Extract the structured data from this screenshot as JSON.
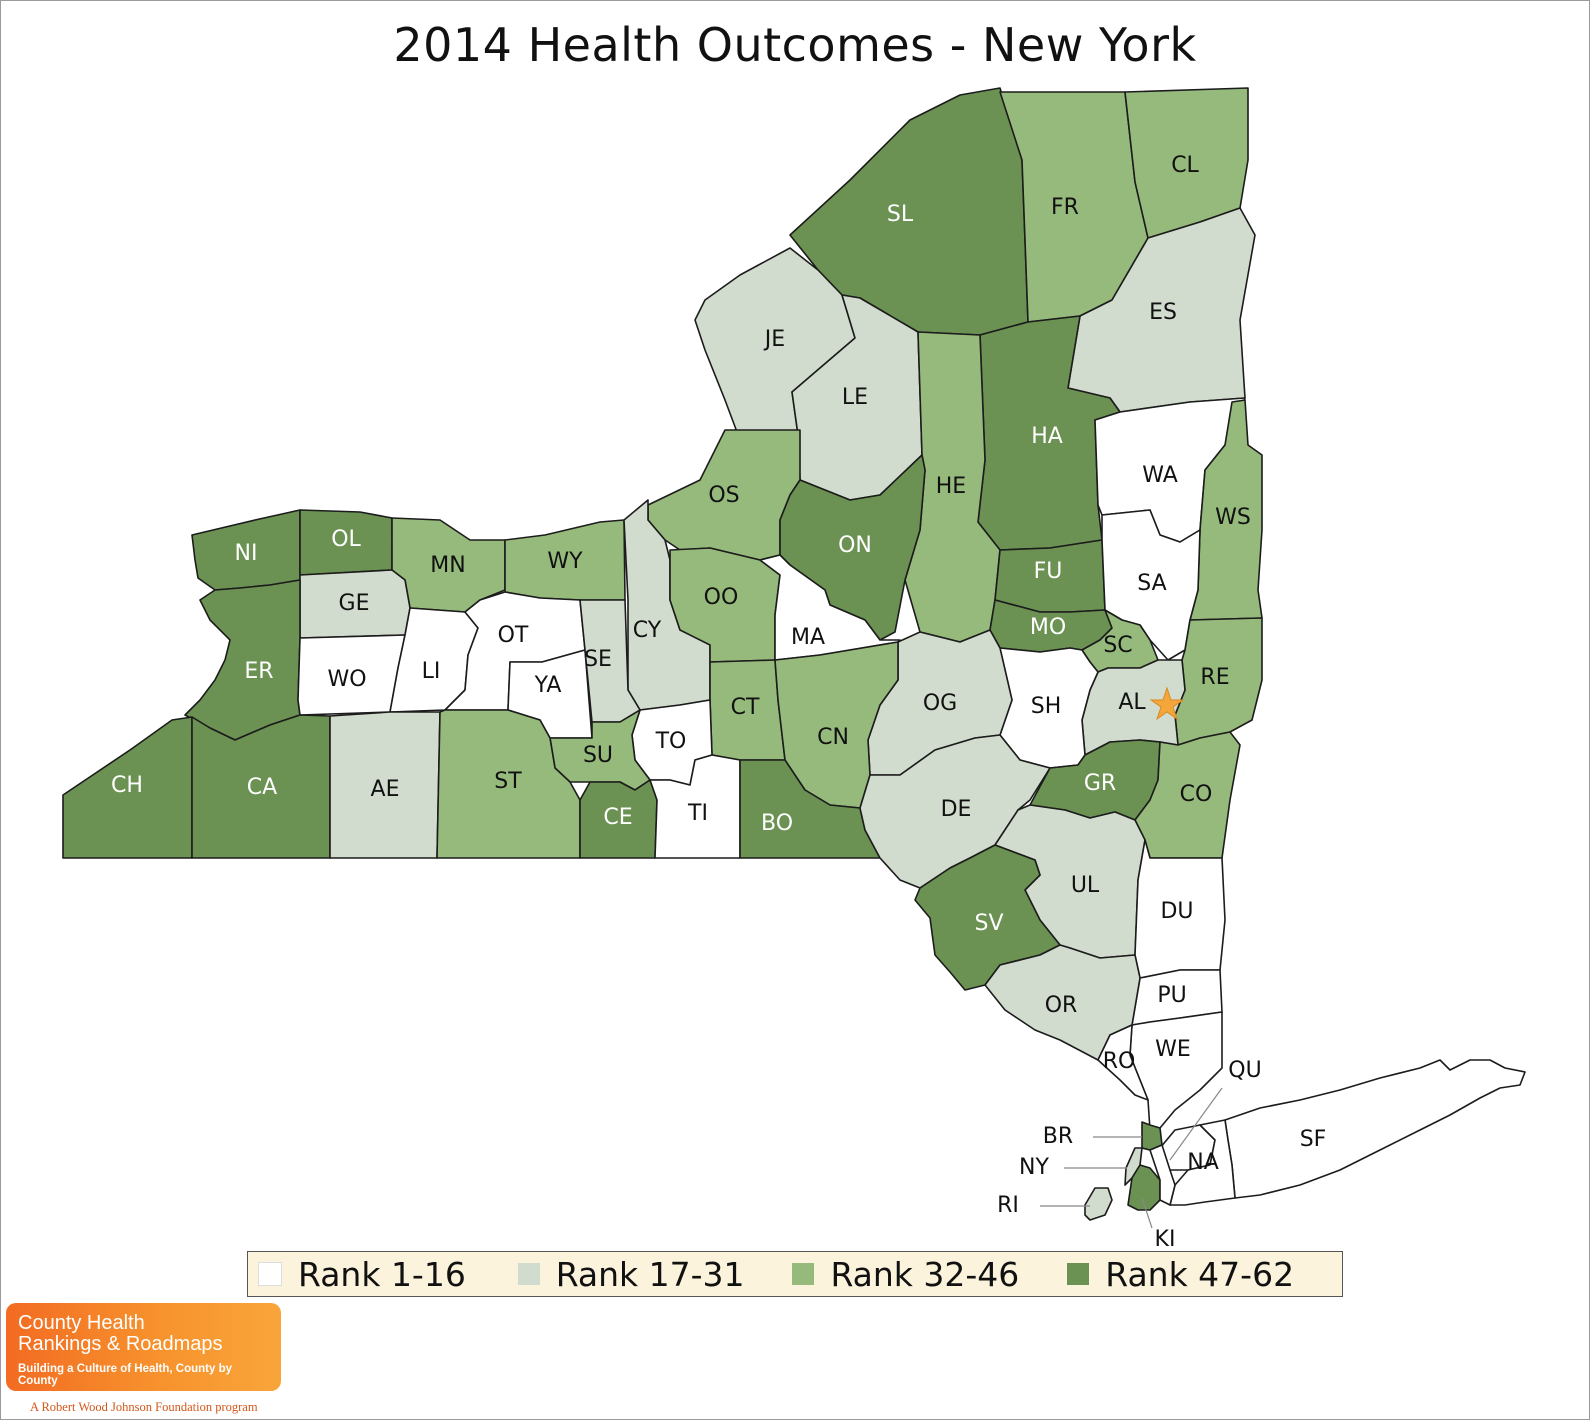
{
  "title": "2014 Health Outcomes - New York",
  "colors": {
    "rank_1_16": "#ffffff",
    "rank_17_31": "#d2dcce",
    "rank_32_46": "#96ba7c",
    "rank_47_62": "#6b9253",
    "capital_star": "#f5a63a",
    "legend_bg": "#fbf3dc"
  },
  "legend": [
    {
      "label": "Rank 1-16",
      "class": "rank_1_16"
    },
    {
      "label": "Rank 17-31",
      "class": "rank_17_31"
    },
    {
      "label": "Rank 32-46",
      "class": "rank_32_46"
    },
    {
      "label": "Rank 47-62",
      "class": "rank_47_62"
    }
  ],
  "counties": [
    {
      "code": "SL",
      "rank": "rank_47_62"
    },
    {
      "code": "FR",
      "rank": "rank_32_46"
    },
    {
      "code": "CL",
      "rank": "rank_32_46"
    },
    {
      "code": "ES",
      "rank": "rank_17_31"
    },
    {
      "code": "JE",
      "rank": "rank_17_31"
    },
    {
      "code": "LE",
      "rank": "rank_17_31"
    },
    {
      "code": "HA",
      "rank": "rank_47_62"
    },
    {
      "code": "HE",
      "rank": "rank_32_46"
    },
    {
      "code": "WA",
      "rank": "rank_1_16"
    },
    {
      "code": "WS",
      "rank": "rank_32_46"
    },
    {
      "code": "OS",
      "rank": "rank_32_46"
    },
    {
      "code": "ON",
      "rank": "rank_47_62"
    },
    {
      "code": "NI",
      "rank": "rank_47_62"
    },
    {
      "code": "OL",
      "rank": "rank_47_62"
    },
    {
      "code": "MN",
      "rank": "rank_32_46"
    },
    {
      "code": "WY",
      "rank": "rank_32_46"
    },
    {
      "code": "CY",
      "rank": "rank_17_31"
    },
    {
      "code": "OO",
      "rank": "rank_32_46"
    },
    {
      "code": "FU",
      "rank": "rank_47_62"
    },
    {
      "code": "SA",
      "rank": "rank_1_16"
    },
    {
      "code": "GE",
      "rank": "rank_17_31"
    },
    {
      "code": "ER",
      "rank": "rank_47_62"
    },
    {
      "code": "WO",
      "rank": "rank_1_16"
    },
    {
      "code": "LI",
      "rank": "rank_1_16"
    },
    {
      "code": "OT",
      "rank": "rank_1_16"
    },
    {
      "code": "YA",
      "rank": "rank_1_16"
    },
    {
      "code": "SE",
      "rank": "rank_17_31"
    },
    {
      "code": "MA",
      "rank": "rank_1_16"
    },
    {
      "code": "MO",
      "rank": "rank_47_62"
    },
    {
      "code": "SC",
      "rank": "rank_32_46"
    },
    {
      "code": "RE",
      "rank": "rank_32_46"
    },
    {
      "code": "AL",
      "rank": "rank_17_31"
    },
    {
      "code": "SH",
      "rank": "rank_1_16"
    },
    {
      "code": "OG",
      "rank": "rank_17_31"
    },
    {
      "code": "CT",
      "rank": "rank_32_46"
    },
    {
      "code": "CN",
      "rank": "rank_32_46"
    },
    {
      "code": "TO",
      "rank": "rank_1_16"
    },
    {
      "code": "SU",
      "rank": "rank_32_46"
    },
    {
      "code": "CH",
      "rank": "rank_47_62"
    },
    {
      "code": "CA",
      "rank": "rank_47_62"
    },
    {
      "code": "AE",
      "rank": "rank_17_31"
    },
    {
      "code": "ST",
      "rank": "rank_32_46"
    },
    {
      "code": "CE",
      "rank": "rank_47_62"
    },
    {
      "code": "TI",
      "rank": "rank_1_16"
    },
    {
      "code": "BO",
      "rank": "rank_47_62"
    },
    {
      "code": "DE",
      "rank": "rank_17_31"
    },
    {
      "code": "GR",
      "rank": "rank_47_62"
    },
    {
      "code": "CO",
      "rank": "rank_32_46"
    },
    {
      "code": "UL",
      "rank": "rank_17_31"
    },
    {
      "code": "DU",
      "rank": "rank_1_16"
    },
    {
      "code": "SV",
      "rank": "rank_47_62"
    },
    {
      "code": "PU",
      "rank": "rank_1_16"
    },
    {
      "code": "OR",
      "rank": "rank_17_31"
    },
    {
      "code": "WE",
      "rank": "rank_1_16"
    },
    {
      "code": "RO",
      "rank": "rank_1_16"
    },
    {
      "code": "QU",
      "rank": "rank_1_16"
    },
    {
      "code": "SF",
      "rank": "rank_1_16"
    },
    {
      "code": "NA",
      "rank": "rank_1_16"
    },
    {
      "code": "BR",
      "rank": "rank_47_62"
    },
    {
      "code": "NY",
      "rank": "rank_17_31"
    },
    {
      "code": "RI",
      "rank": "rank_17_31"
    },
    {
      "code": "KI",
      "rank": "rank_47_62"
    }
  ],
  "logo": {
    "line1": "County Health",
    "line2": "Rankings & Roadmaps",
    "line3": "Building a Culture of Health, County by County",
    "sub": "A Robert Wood Johnson Foundation program"
  }
}
